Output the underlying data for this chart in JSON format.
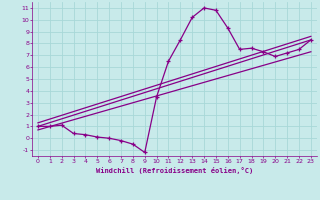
{
  "xlabel": "Windchill (Refroidissement éolien,°C)",
  "background_color": "#c8eaea",
  "grid_color": "#a8d8d8",
  "line_color": "#880088",
  "xlim": [
    -0.5,
    23.5
  ],
  "ylim": [
    -1.5,
    11.5
  ],
  "xticks": [
    0,
    1,
    2,
    3,
    4,
    5,
    6,
    7,
    8,
    9,
    10,
    11,
    12,
    13,
    14,
    15,
    16,
    17,
    18,
    19,
    20,
    21,
    22,
    23
  ],
  "yticks": [
    -1,
    0,
    1,
    2,
    3,
    4,
    5,
    6,
    7,
    8,
    9,
    10,
    11
  ],
  "curve_x": [
    0,
    1,
    2,
    3,
    4,
    5,
    6,
    7,
    8,
    9,
    10,
    11,
    12,
    13,
    14,
    15,
    16,
    17,
    18,
    19,
    20,
    21,
    22,
    23
  ],
  "curve_y": [
    1.0,
    1.0,
    1.1,
    0.4,
    0.3,
    0.1,
    0.0,
    -0.2,
    -0.5,
    -1.2,
    3.5,
    6.5,
    8.3,
    10.2,
    11.0,
    10.8,
    9.3,
    7.5,
    7.6,
    7.3,
    6.9,
    7.2,
    7.5,
    8.3
  ],
  "line1_x": [
    0,
    23
  ],
  "line1_y": [
    1.0,
    8.3
  ],
  "line2_x": [
    0,
    23
  ],
  "line2_y": [
    0.7,
    7.3
  ],
  "line3_x": [
    0,
    23
  ],
  "line3_y": [
    1.3,
    8.6
  ]
}
